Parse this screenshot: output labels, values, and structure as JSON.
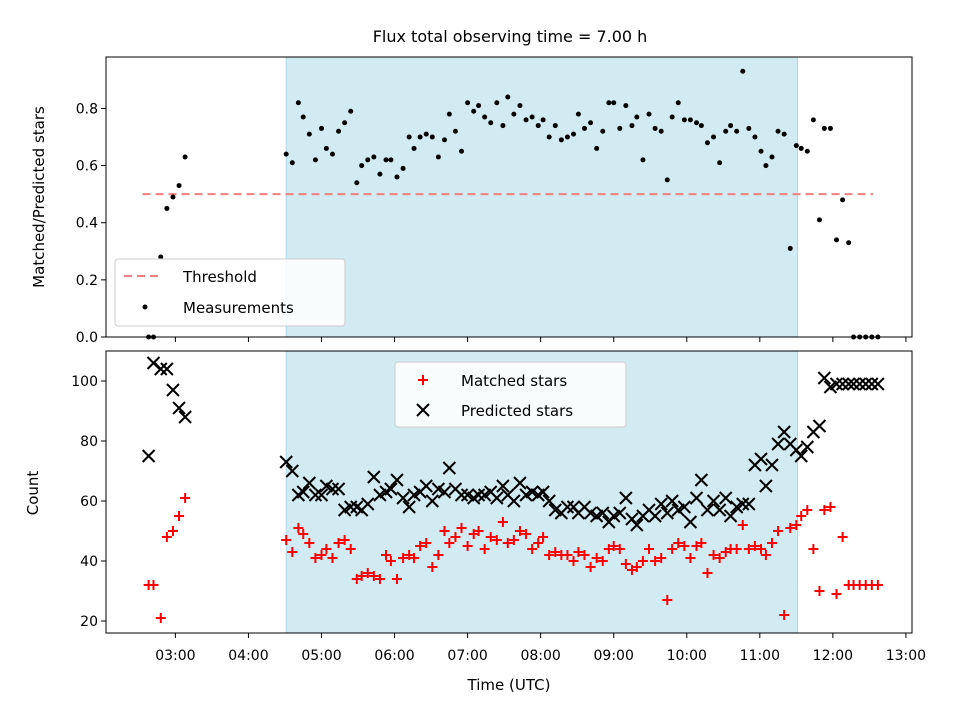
{
  "figure": {
    "title": "Flux total observing time = 7.00 h",
    "xlabel": "Time (UTC)"
  },
  "colors": {
    "shade": "#add8e6",
    "threshold": "#f08080",
    "measurement": "#000000",
    "matched": "#ff0000",
    "predicted": "#000000"
  },
  "chart_data": [
    {
      "type": "scatter",
      "title": "Flux total observing time = 7.00 h",
      "ylabel": "Matched/Predicted stars",
      "xlabel": "",
      "xlim": [
        "02:03",
        "13:05"
      ],
      "ylim": [
        0,
        0.98
      ],
      "yticks": [
        "0.0",
        "0.2",
        "0.4",
        "0.6",
        "0.8"
      ],
      "grid": false,
      "legend": "lower-left",
      "shaded_region": [
        "04:31",
        "11:31"
      ],
      "threshold": {
        "name": "Threshold",
        "y": 0.5,
        "x_range": [
          "02:33",
          "12:33"
        ]
      },
      "series": [
        {
          "name": "Measurements",
          "marker": "dot",
          "x": [
            "02:38",
            "02:42",
            "02:48",
            "02:53",
            "02:58",
            "03:03",
            "03:08",
            "04:31",
            "04:36",
            "04:41",
            "04:45",
            "04:50",
            "04:55",
            "05:00",
            "05:04",
            "05:09",
            "05:14",
            "05:19",
            "05:24",
            "05:29",
            "05:33",
            "05:38",
            "05:43",
            "05:48",
            "05:53",
            "05:57",
            "06:02",
            "06:07",
            "06:12",
            "06:16",
            "06:21",
            "06:26",
            "06:31",
            "06:36",
            "06:41",
            "06:45",
            "06:50",
            "06:55",
            "07:00",
            "07:05",
            "07:09",
            "07:14",
            "07:19",
            "07:24",
            "07:29",
            "07:33",
            "07:38",
            "07:43",
            "07:48",
            "07:53",
            "07:58",
            "08:02",
            "08:07",
            "08:12",
            "08:17",
            "08:22",
            "08:27",
            "08:31",
            "08:36",
            "08:41",
            "08:46",
            "08:51",
            "08:56",
            "09:00",
            "09:05",
            "09:10",
            "09:15",
            "09:19",
            "09:24",
            "09:29",
            "09:34",
            "09:39",
            "09:44",
            "09:48",
            "09:53",
            "09:58",
            "10:03",
            "10:08",
            "10:12",
            "10:17",
            "10:22",
            "10:27",
            "10:32",
            "10:36",
            "10:41",
            "10:46",
            "10:51",
            "10:56",
            "11:01",
            "11:05",
            "11:10",
            "11:15",
            "11:20",
            "11:25",
            "11:30",
            "11:34",
            "11:39",
            "11:44",
            "11:49",
            "11:53",
            "11:58",
            "12:03",
            "12:08",
            "12:13",
            "12:17",
            "12:22",
            "12:27",
            "12:32",
            "12:37"
          ],
          "y": [
            0.0,
            0.0,
            0.28,
            0.45,
            0.49,
            0.53,
            0.63,
            0.64,
            0.61,
            0.82,
            0.77,
            0.71,
            0.62,
            0.73,
            0.66,
            0.64,
            0.72,
            0.75,
            0.79,
            0.54,
            0.6,
            0.62,
            0.63,
            0.57,
            0.62,
            0.62,
            0.56,
            0.59,
            0.7,
            0.66,
            0.7,
            0.71,
            0.7,
            0.63,
            0.69,
            0.78,
            0.72,
            0.65,
            0.82,
            0.79,
            0.81,
            0.77,
            0.75,
            0.82,
            0.74,
            0.84,
            0.78,
            0.81,
            0.76,
            0.77,
            0.74,
            0.76,
            0.7,
            0.74,
            0.69,
            0.7,
            0.71,
            0.78,
            0.73,
            0.75,
            0.66,
            0.72,
            0.82,
            0.82,
            0.73,
            0.81,
            0.74,
            0.77,
            0.62,
            0.78,
            0.73,
            0.72,
            0.55,
            0.77,
            0.82,
            0.76,
            0.76,
            0.75,
            0.74,
            0.68,
            0.7,
            0.61,
            0.72,
            0.74,
            0.72,
            0.93,
            0.73,
            0.7,
            0.65,
            0.6,
            0.63,
            0.72,
            0.71,
            0.31,
            0.67,
            0.66,
            0.65,
            0.76,
            0.41,
            0.73,
            0.73,
            0.34,
            0.48,
            0.33,
            0.0,
            0.0,
            0.0,
            0.0,
            0.0
          ]
        }
      ]
    },
    {
      "type": "scatter",
      "ylabel": "Count",
      "xlabel": "Time (UTC)",
      "xlim": [
        "02:03",
        "13:05"
      ],
      "ylim": [
        16,
        110
      ],
      "yticks": [
        "20",
        "40",
        "60",
        "80",
        "100"
      ],
      "xticks": [
        "03:00",
        "04:00",
        "05:00",
        "06:00",
        "07:00",
        "08:00",
        "09:00",
        "10:00",
        "11:00",
        "12:00",
        "13:00"
      ],
      "grid": false,
      "legend": "top-center",
      "shaded_region": [
        "04:31",
        "11:31"
      ],
      "series": [
        {
          "name": "Matched stars",
          "marker": "plus",
          "x": [
            "02:38",
            "02:42",
            "02:48",
            "02:53",
            "02:58",
            "03:03",
            "03:08",
            "04:31",
            "04:36",
            "04:41",
            "04:45",
            "04:50",
            "04:55",
            "05:00",
            "05:04",
            "05:09",
            "05:14",
            "05:19",
            "05:24",
            "05:29",
            "05:33",
            "05:38",
            "05:43",
            "05:48",
            "05:53",
            "05:57",
            "06:02",
            "06:07",
            "06:12",
            "06:16",
            "06:21",
            "06:26",
            "06:31",
            "06:36",
            "06:41",
            "06:45",
            "06:50",
            "06:55",
            "07:00",
            "07:05",
            "07:09",
            "07:14",
            "07:19",
            "07:24",
            "07:29",
            "07:33",
            "07:38",
            "07:43",
            "07:48",
            "07:53",
            "07:58",
            "08:02",
            "08:07",
            "08:12",
            "08:17",
            "08:22",
            "08:27",
            "08:31",
            "08:36",
            "08:41",
            "08:46",
            "08:51",
            "08:56",
            "09:00",
            "09:05",
            "09:10",
            "09:15",
            "09:19",
            "09:24",
            "09:29",
            "09:34",
            "09:39",
            "09:44",
            "09:48",
            "09:53",
            "09:58",
            "10:03",
            "10:08",
            "10:12",
            "10:17",
            "10:22",
            "10:27",
            "10:32",
            "10:36",
            "10:41",
            "10:46",
            "10:51",
            "10:56",
            "11:01",
            "11:05",
            "11:10",
            "11:15",
            "11:20",
            "11:25",
            "11:30",
            "11:34",
            "11:39",
            "11:44",
            "11:49",
            "11:53",
            "11:58",
            "12:03",
            "12:08",
            "12:13",
            "12:17",
            "12:22",
            "12:27",
            "12:32",
            "12:37"
          ],
          "y": [
            32,
            32,
            21,
            48,
            50,
            55,
            61,
            47,
            43,
            51,
            49,
            46,
            41,
            42,
            44,
            41,
            46,
            47,
            44,
            34,
            35,
            36,
            35,
            34,
            42,
            40,
            34,
            41,
            42,
            41,
            45,
            46,
            38,
            42,
            50,
            46,
            48,
            51,
            45,
            49,
            50,
            44,
            48,
            47,
            53,
            46,
            47,
            50,
            49,
            44,
            46,
            48,
            42,
            43,
            42,
            42,
            40,
            43,
            42,
            38,
            41,
            40,
            44,
            45,
            44,
            39,
            37,
            38,
            40,
            44,
            40,
            41,
            27,
            44,
            46,
            45,
            41,
            45,
            46,
            36,
            42,
            41,
            43,
            44,
            44,
            52,
            44,
            45,
            44,
            42,
            46,
            50,
            22,
            51,
            52,
            55,
            57,
            44,
            30,
            57,
            58,
            29,
            48,
            32,
            32,
            32,
            32,
            32,
            32
          ]
        },
        {
          "name": "Predicted stars",
          "marker": "x",
          "x": [
            "02:38",
            "02:42",
            "02:48",
            "02:53",
            "02:58",
            "03:03",
            "03:08",
            "04:31",
            "04:36",
            "04:41",
            "04:45",
            "04:50",
            "04:55",
            "05:00",
            "05:04",
            "05:09",
            "05:14",
            "05:19",
            "05:24",
            "05:29",
            "05:33",
            "05:38",
            "05:43",
            "05:48",
            "05:53",
            "05:57",
            "06:02",
            "06:07",
            "06:12",
            "06:16",
            "06:21",
            "06:26",
            "06:31",
            "06:36",
            "06:41",
            "06:45",
            "06:50",
            "06:55",
            "07:00",
            "07:05",
            "07:09",
            "07:14",
            "07:19",
            "07:24",
            "07:29",
            "07:33",
            "07:38",
            "07:43",
            "07:48",
            "07:53",
            "07:58",
            "08:02",
            "08:07",
            "08:12",
            "08:17",
            "08:22",
            "08:27",
            "08:31",
            "08:36",
            "08:41",
            "08:46",
            "08:51",
            "08:56",
            "09:00",
            "09:05",
            "09:10",
            "09:15",
            "09:19",
            "09:24",
            "09:29",
            "09:34",
            "09:39",
            "09:44",
            "09:48",
            "09:53",
            "09:58",
            "10:03",
            "10:08",
            "10:12",
            "10:17",
            "10:22",
            "10:27",
            "10:32",
            "10:36",
            "10:41",
            "10:46",
            "10:51",
            "10:56",
            "11:01",
            "11:05",
            "11:10",
            "11:15",
            "11:20",
            "11:25",
            "11:30",
            "11:34",
            "11:39",
            "11:44",
            "11:49",
            "11:53",
            "11:58",
            "12:03",
            "12:08",
            "12:13",
            "12:17",
            "12:22",
            "12:27",
            "12:32",
            "12:37"
          ],
          "y": [
            75,
            106,
            104,
            104,
            97,
            91,
            88,
            73,
            70,
            62,
            63,
            66,
            62,
            62,
            65,
            64,
            64,
            57,
            58,
            58,
            57,
            59,
            68,
            62,
            63,
            64,
            67,
            61,
            58,
            62,
            63,
            65,
            60,
            64,
            63,
            71,
            64,
            62,
            62,
            61,
            62,
            62,
            63,
            61,
            65,
            62,
            60,
            66,
            62,
            63,
            62,
            63,
            60,
            57,
            56,
            58,
            58,
            56,
            58,
            56,
            55,
            56,
            53,
            55,
            56,
            61,
            54,
            52,
            55,
            57,
            55,
            59,
            56,
            60,
            57,
            58,
            53,
            61,
            67,
            57,
            60,
            57,
            61,
            55,
            58,
            59,
            59,
            72,
            74,
            65,
            72,
            79,
            83,
            79,
            77,
            75,
            78,
            83,
            85,
            101,
            98,
            99,
            99,
            99,
            99,
            99,
            99,
            99,
            99
          ]
        }
      ]
    }
  ]
}
